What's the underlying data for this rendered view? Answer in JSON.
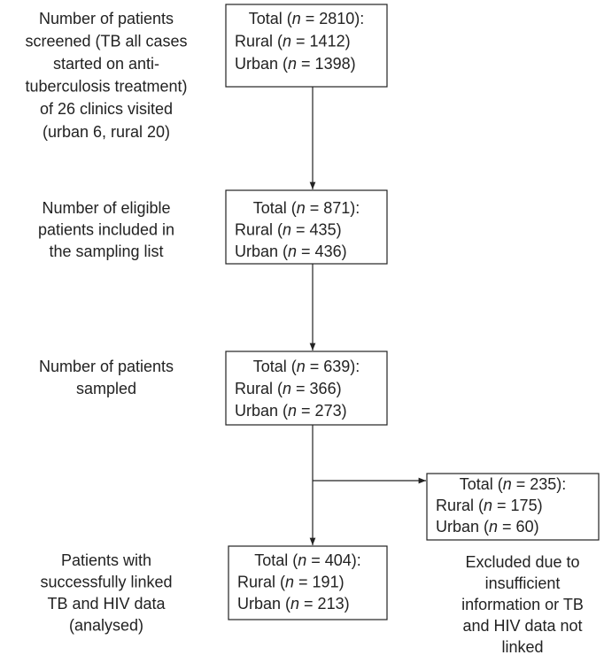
{
  "labels": [
    {
      "lines": [
        "Number of patients",
        "screened (TB all cases",
        "started on anti-",
        "tuberculosis treatment)",
        "of 26 clinics visited",
        "(urban 6, rural 20)"
      ]
    },
    {
      "lines": [
        "Number of eligible",
        "patients included in",
        "the sampling list"
      ]
    },
    {
      "lines": [
        "Number of patients",
        "sampled"
      ]
    },
    {
      "lines": [
        "Patients with",
        "successfully linked",
        "TB and HIV data",
        "(analysed)"
      ]
    },
    {
      "lines": [
        "Excluded due to",
        "insufficient",
        "information or TB",
        "and HIV data not",
        "linked"
      ]
    }
  ],
  "boxes": [
    {
      "lines": [
        [
          "Total (",
          "n",
          " = 2810):"
        ],
        [
          "Rural (",
          "n",
          " = 1412)"
        ],
        [
          "Urban (",
          "n",
          " = 1398)"
        ]
      ]
    },
    {
      "lines": [
        [
          "Total (",
          "n",
          " = 871):"
        ],
        [
          "Rural (",
          "n",
          " = 435)"
        ],
        [
          "Urban (",
          "n",
          " = 436)"
        ]
      ]
    },
    {
      "lines": [
        [
          "Total (",
          "n",
          " = 639):"
        ],
        [
          "Rural (",
          "n",
          " = 366)"
        ],
        [
          "Urban (",
          "n",
          " = 273)"
        ]
      ]
    },
    {
      "lines": [
        [
          "Total (",
          "n",
          " = 235):"
        ],
        [
          "Rural (",
          "n",
          " = 175)"
        ],
        [
          "Urban (",
          "n",
          " = 60)"
        ]
      ]
    },
    {
      "lines": [
        [
          "Total (",
          "n",
          " = 404):"
        ],
        [
          "Rural (",
          "n",
          " = 191)"
        ],
        [
          "Urban (",
          "n",
          " = 213)"
        ]
      ]
    }
  ]
}
